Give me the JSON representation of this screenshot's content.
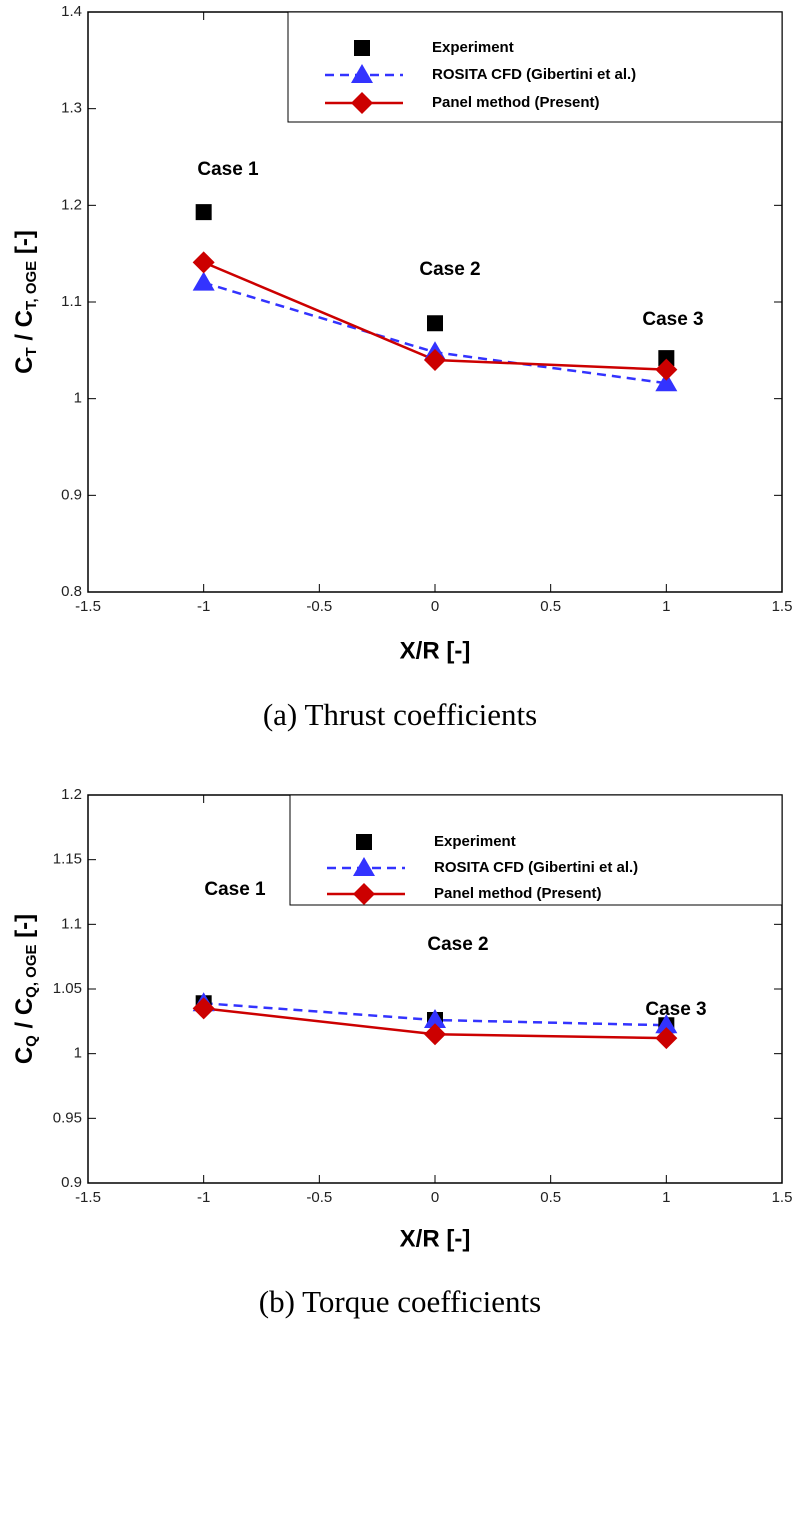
{
  "chart_data": [
    {
      "type": "line",
      "ylabel": [
        "C",
        "T",
        " / C",
        "T, OGE",
        " [-]"
      ],
      "xlabel": "X/R [-]",
      "caption": "(a)  Thrust  coefficients",
      "x": [
        -1,
        0,
        1
      ],
      "series": [
        {
          "name": "Experiment",
          "color": "#000000",
          "marker": "square",
          "line": "none",
          "values": [
            1.193,
            1.078,
            1.042
          ]
        },
        {
          "name": "ROSITA CFD (Gibertini et al.)",
          "color": "#3333ff",
          "marker": "triangle",
          "line": "dashed",
          "values": [
            1.12,
            1.048,
            1.016
          ]
        },
        {
          "name": "Panel method (Present)",
          "color": "#cc0000",
          "marker": "diamond",
          "line": "solid",
          "values": [
            1.141,
            1.04,
            1.03
          ]
        }
      ],
      "annotations": [
        "Case 1",
        "Case 2",
        "Case 3"
      ],
      "xlim": [
        -1.5,
        1.5
      ],
      "xticks": [
        -1.5,
        -1,
        -0.5,
        0,
        0.5,
        1,
        1.5
      ],
      "ylim": [
        0.8,
        1.4
      ],
      "yticks": [
        0.8,
        0.9,
        1,
        1.1,
        1.2,
        1.3,
        1.4
      ],
      "legend": "upper right"
    },
    {
      "type": "line",
      "ylabel": [
        "C",
        "Q",
        " / C",
        "Q, OGE",
        " [-]"
      ],
      "xlabel": "X/R [-]",
      "caption": "(b)  Torque  coefficients",
      "x": [
        -1,
        0,
        1
      ],
      "series": [
        {
          "name": "Experiment",
          "color": "#000000",
          "marker": "square",
          "line": "none",
          "values": [
            1.039,
            1.026,
            1.022
          ]
        },
        {
          "name": "ROSITA CFD (Gibertini et al.)",
          "color": "#3333ff",
          "marker": "triangle",
          "line": "dashed",
          "values": [
            1.039,
            1.026,
            1.022
          ]
        },
        {
          "name": "Panel method (Present)",
          "color": "#cc0000",
          "marker": "diamond",
          "line": "solid",
          "values": [
            1.035,
            1.015,
            1.012
          ]
        }
      ],
      "annotations": [
        "Case 1",
        "Case 2",
        "Case 3"
      ],
      "xlim": [
        -1.5,
        1.5
      ],
      "xticks": [
        -1.5,
        -1,
        -0.5,
        0,
        0.5,
        1,
        1.5
      ],
      "ylim": [
        0.9,
        1.2
      ],
      "yticks": [
        0.9,
        0.95,
        1,
        1.05,
        1.1,
        1.15,
        1.2
      ],
      "legend": "upper right"
    }
  ]
}
